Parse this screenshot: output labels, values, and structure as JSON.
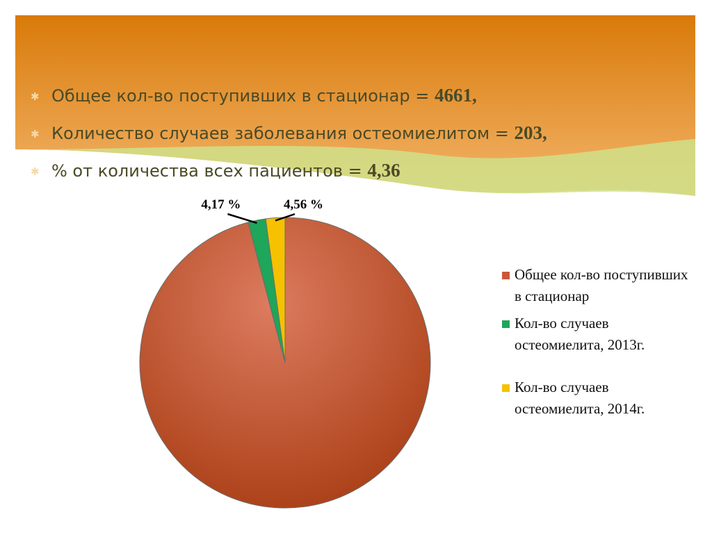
{
  "bullets": [
    {
      "text": "Общее кол-во поступивших в стационар = ",
      "bold": "4661,"
    },
    {
      "text": "Количество случаев заболевания остеомиелитом = ",
      "bold": "203,"
    },
    {
      "text": "% от количества всех пациентов = ",
      "bold": "4,36"
    }
  ],
  "chart_data": {
    "type": "pie",
    "categories": [
      "Общее кол-во поступивших в стационар",
      "Кол-во случаев остеомиелита, 2013г.",
      "Кол-во случаев остеомиелита, 2014г."
    ],
    "values": [
      205,
      4.17,
      4.56
    ],
    "value_labels": [
      null,
      "4,17 %",
      "4,56 %"
    ],
    "colors": [
      "#c9583a",
      "#1ea65a",
      "#f5c100"
    ],
    "legend": "right"
  }
}
